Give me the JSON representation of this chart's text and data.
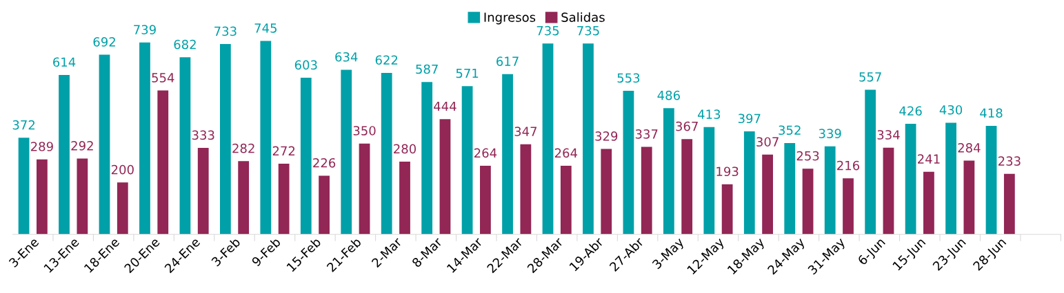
{
  "chart_data": {
    "type": "bar",
    "categories": [
      "3-Ene",
      "13-Ene",
      "18-Ene",
      "20-Ene",
      "24-Ene",
      "3-Feb",
      "9-Feb",
      "15-Feb",
      "21-Feb",
      "2-Mar",
      "8-Mar",
      "14-Mar",
      "22-Mar",
      "28-Mar",
      "19-Abr",
      "27-Abr",
      "3-May",
      "12-May",
      "18-May",
      "24-May",
      "31-May",
      "6-Jun",
      "15-Jun",
      "23-Jun",
      "28-Jun",
      null
    ],
    "series": [
      {
        "name": "Ingresos",
        "color": "#00a0a8",
        "values": [
          372,
          614,
          692,
          739,
          682,
          733,
          745,
          603,
          634,
          622,
          587,
          571,
          617,
          735,
          735,
          553,
          486,
          413,
          397,
          352,
          339,
          557,
          426,
          430,
          418,
          null
        ]
      },
      {
        "name": "Salidas",
        "color": "#922655",
        "values": [
          289,
          292,
          200,
          554,
          333,
          282,
          272,
          226,
          350,
          280,
          444,
          264,
          347,
          264,
          329,
          337,
          367,
          193,
          307,
          253,
          216,
          334,
          241,
          284,
          233,
          null
        ]
      }
    ],
    "data_labels": true,
    "legend": "top",
    "grid": false
  }
}
